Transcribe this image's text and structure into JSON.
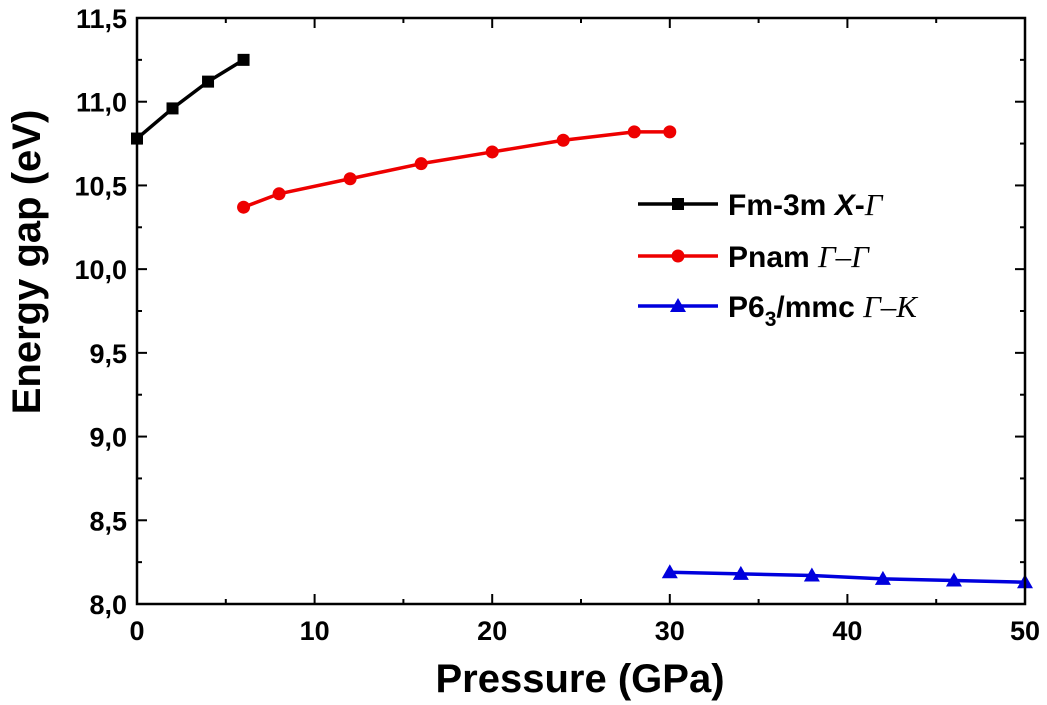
{
  "chart_data": {
    "type": "line",
    "xlabel": "Pressure (GPa)",
    "ylabel": "Energy gap (eV)",
    "xlim": [
      0,
      50
    ],
    "ylim": [
      8.0,
      11.5
    ],
    "xticks": [
      0,
      10,
      20,
      30,
      40,
      50
    ],
    "xtick_labels": [
      "0",
      "10",
      "20",
      "30",
      "40",
      "50"
    ],
    "yticks": [
      8.0,
      8.5,
      9.0,
      9.5,
      10.0,
      10.5,
      11.0,
      11.5
    ],
    "ytick_labels": [
      "8,0",
      "8,5",
      "9,0",
      "9,5",
      "10,0",
      "10,5",
      "11,0",
      "11,5"
    ],
    "grid": false,
    "legend_position": "right",
    "series": [
      {
        "name": "Fm-3m X-Γ",
        "legend_parts": [
          "Fm-3m ",
          "X",
          "-",
          "Γ"
        ],
        "color": "#000000",
        "marker": "square",
        "x": [
          0,
          2,
          4,
          6
        ],
        "y": [
          10.78,
          10.96,
          11.12,
          11.25
        ]
      },
      {
        "name": "Pnam Γ–Γ",
        "legend_parts": [
          "Pnam ",
          "Γ–Γ"
        ],
        "color": "#ee0000",
        "marker": "circle",
        "x": [
          6,
          8,
          12,
          16,
          20,
          24,
          28,
          30
        ],
        "y": [
          10.37,
          10.45,
          10.54,
          10.63,
          10.7,
          10.77,
          10.82,
          10.82
        ]
      },
      {
        "name": "P6_3/mmc Γ–K",
        "legend_parts": [
          "P6",
          "3",
          "/mmc ",
          "Γ–K"
        ],
        "color": "#0000dd",
        "marker": "triangle",
        "x": [
          30,
          34,
          38,
          42,
          46,
          50
        ],
        "y": [
          8.19,
          8.18,
          8.17,
          8.15,
          8.14,
          8.13
        ]
      }
    ]
  }
}
